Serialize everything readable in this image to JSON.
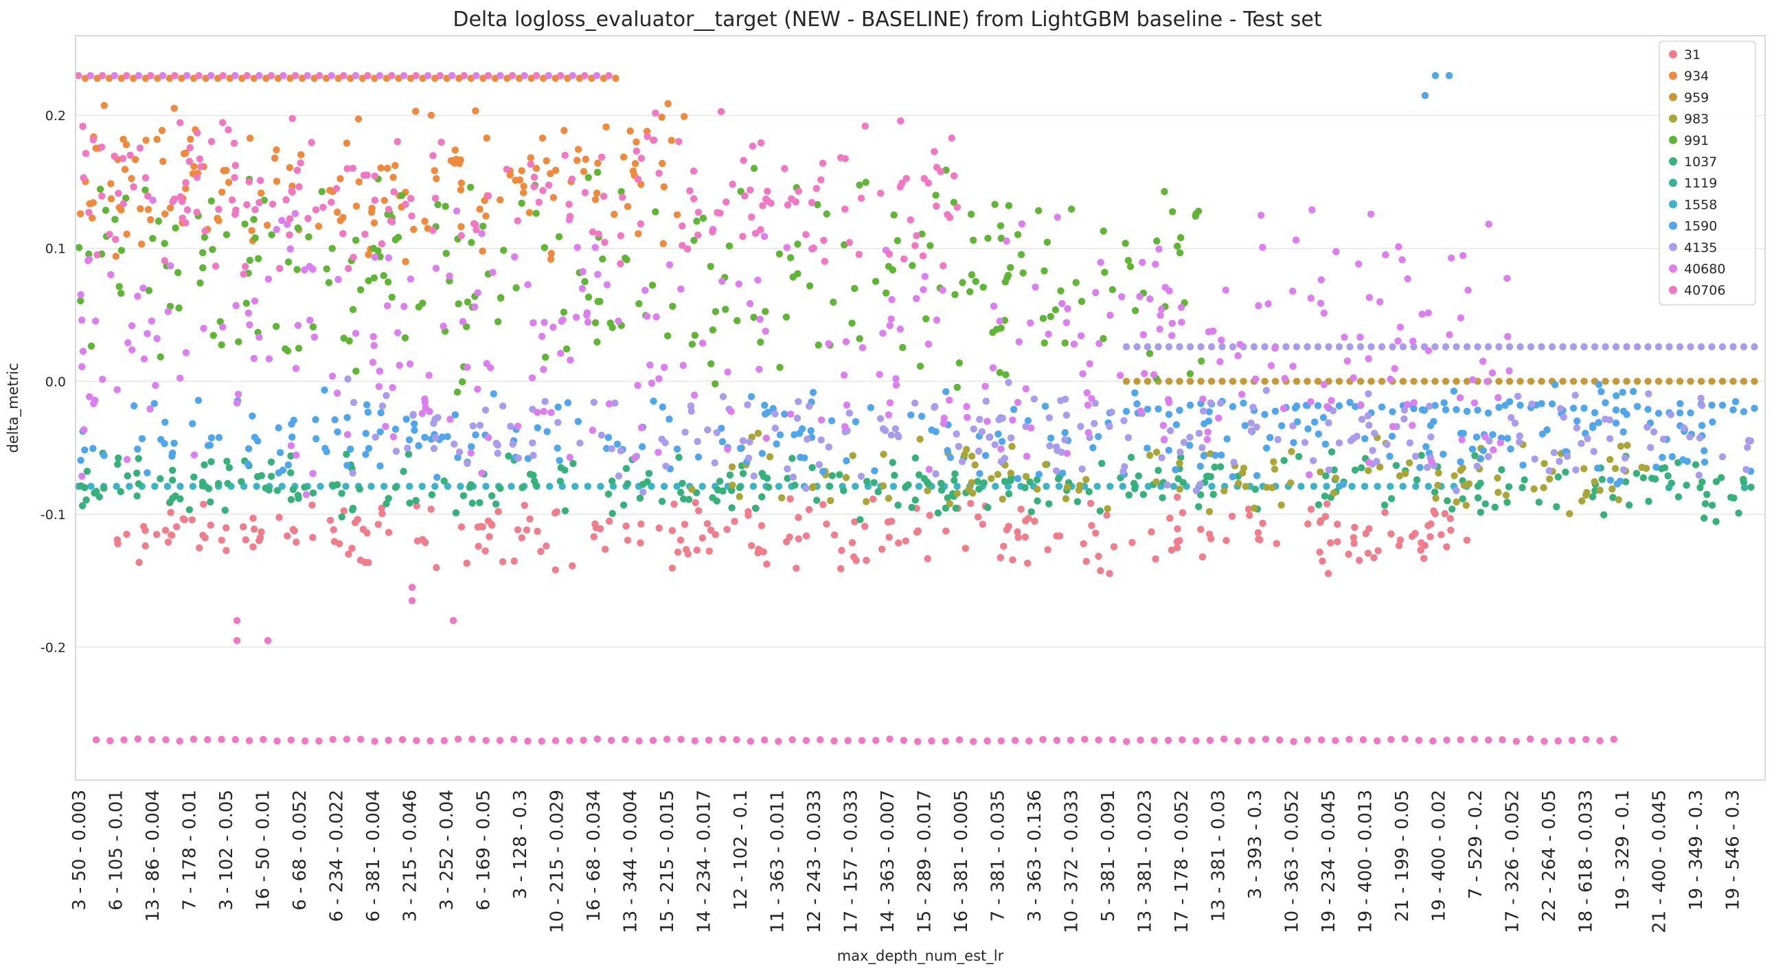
{
  "chart_data": {
    "type": "scatter",
    "title": "Delta logloss_evaluator__target (NEW - BASELINE) from LightGBM baseline - Test set",
    "xlabel": "max_depth_num_est_lr",
    "ylabel": "delta_metric",
    "ylim": [
      -0.3,
      0.26
    ],
    "yticks": [
      {
        "value": 0.2,
        "label": "0.2"
      },
      {
        "value": 0.1,
        "label": "0.1"
      },
      {
        "value": 0.0,
        "label": "0.0"
      },
      {
        "value": -0.1,
        "label": "-0.1"
      },
      {
        "value": -0.2,
        "label": "-0.2"
      }
    ],
    "grid": true,
    "legend_position": "top-right",
    "x_tick_labels": [
      "3 - 50 - 0.003",
      "6 - 105 - 0.01",
      "13 - 86 - 0.004",
      "7 - 178 - 0.01",
      "3 - 102 - 0.05",
      "16 - 50 - 0.01",
      "6 - 68 - 0.052",
      "6 - 234 - 0.022",
      "6 - 381 - 0.004",
      "3 - 215 - 0.046",
      "3 - 252 - 0.04",
      "6 - 169 - 0.05",
      "3 - 128 - 0.3",
      "10 - 215 - 0.029",
      "16 - 68 - 0.034",
      "13 - 344 - 0.004",
      "15 - 215 - 0.015",
      "14 - 234 - 0.017",
      "12 - 102 - 0.1",
      "11 - 363 - 0.011",
      "12 - 243 - 0.033",
      "17 - 157 - 0.033",
      "14 - 363 - 0.007",
      "15 - 289 - 0.017",
      "16 - 381 - 0.005",
      "7 - 381 - 0.035",
      "3 - 363 - 0.136",
      "10 - 372 - 0.033",
      "5 - 381 - 0.091",
      "13 - 381 - 0.023",
      "17 - 178 - 0.052",
      "13 - 381 - 0.03",
      "3 - 393 - 0.3",
      "10 - 363 - 0.052",
      "19 - 234 - 0.045",
      "19 - 400 - 0.013",
      "21 - 199 - 0.05",
      "19 - 400 - 0.02",
      "7 - 529 - 0.2",
      "17 - 326 - 0.052",
      "22 - 264 - 0.05",
      "18 - 618 - 0.033",
      "19 - 329 - 0.1",
      "21 - 400 - 0.045",
      "19 - 349 - 0.3",
      "19 - 546 - 0.3"
    ],
    "series": [
      {
        "name": "31",
        "color": "#f17c8a"
      },
      {
        "name": "934",
        "color": "#f08a3a"
      },
      {
        "name": "959",
        "color": "#c59a35"
      },
      {
        "name": "983",
        "color": "#a9a636"
      },
      {
        "name": "991",
        "color": "#5fb634"
      },
      {
        "name": "1037",
        "color": "#35b17a"
      },
      {
        "name": "1119",
        "color": "#37b39c"
      },
      {
        "name": "1558",
        "color": "#3ab4c6"
      },
      {
        "name": "1590",
        "color": "#4ea6ed"
      },
      {
        "name": "4135",
        "color": "#a99cec"
      },
      {
        "name": "40680",
        "color": "#dc7ef0"
      },
      {
        "name": "40706",
        "color": "#f276c2"
      }
    ]
  }
}
